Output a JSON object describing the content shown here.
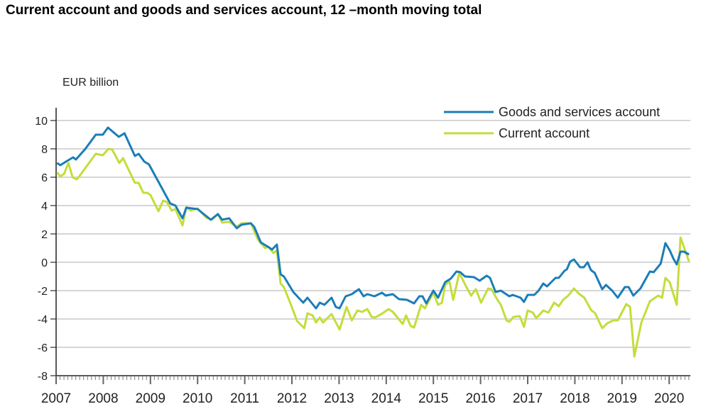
{
  "chart_data": {
    "type": "line",
    "title": "Current account and goods and services account, 12 –month moving total",
    "ylabel": "EUR billion",
    "xlabel": "",
    "ylim": [
      -8,
      11
    ],
    "xlim": [
      2007,
      2020.45
    ],
    "yticks": [
      "10",
      "8",
      "6",
      "4",
      "2",
      "0",
      "-2",
      "-4",
      "-6",
      "-8"
    ],
    "xticks": [
      "2007",
      "2008",
      "2009",
      "2010",
      "2011",
      "2012",
      "2013",
      "2014",
      "2015",
      "2016",
      "2017",
      "2018",
      "2019",
      "2020"
    ],
    "grid": true,
    "legend_position": "top-right",
    "series": [
      {
        "name": "Goods and services account",
        "color": "#1b7db8",
        "points": [
          [
            2007.02,
            7.0
          ],
          [
            2007.09,
            6.85
          ],
          [
            2007.21,
            7.1
          ],
          [
            2007.36,
            7.4
          ],
          [
            2007.42,
            7.25
          ],
          [
            2007.62,
            8.0
          ],
          [
            2007.84,
            9.0
          ],
          [
            2007.99,
            9.0
          ],
          [
            2008.1,
            9.5
          ],
          [
            2008.33,
            8.85
          ],
          [
            2008.45,
            9.1
          ],
          [
            2008.67,
            7.5
          ],
          [
            2008.75,
            7.65
          ],
          [
            2008.87,
            7.1
          ],
          [
            2008.97,
            6.9
          ],
          [
            2009.42,
            4.15
          ],
          [
            2009.53,
            4.0
          ],
          [
            2009.68,
            3.1
          ],
          [
            2009.76,
            3.85
          ],
          [
            2010.0,
            3.75
          ],
          [
            2010.28,
            3.0
          ],
          [
            2010.43,
            3.4
          ],
          [
            2010.52,
            3.0
          ],
          [
            2010.67,
            3.1
          ],
          [
            2010.83,
            2.4
          ],
          [
            2010.93,
            2.65
          ],
          [
            2011.13,
            2.75
          ],
          [
            2011.2,
            2.5
          ],
          [
            2011.34,
            1.4
          ],
          [
            2011.49,
            1.1
          ],
          [
            2011.58,
            0.9
          ],
          [
            2011.68,
            1.25
          ],
          [
            2011.76,
            -0.85
          ],
          [
            2011.83,
            -1.0
          ],
          [
            2012.03,
            -2.1
          ],
          [
            2012.24,
            -2.85
          ],
          [
            2012.33,
            -2.5
          ],
          [
            2012.51,
            -3.25
          ],
          [
            2012.59,
            -2.85
          ],
          [
            2012.69,
            -3.0
          ],
          [
            2012.84,
            -2.5
          ],
          [
            2012.93,
            -3.15
          ],
          [
            2013.01,
            -3.25
          ],
          [
            2013.14,
            -2.4
          ],
          [
            2013.27,
            -2.25
          ],
          [
            2013.42,
            -1.9
          ],
          [
            2013.52,
            -2.4
          ],
          [
            2013.6,
            -2.25
          ],
          [
            2013.75,
            -2.4
          ],
          [
            2013.91,
            -2.15
          ],
          [
            2013.99,
            -2.35
          ],
          [
            2014.14,
            -2.25
          ],
          [
            2014.27,
            -2.6
          ],
          [
            2014.44,
            -2.65
          ],
          [
            2014.59,
            -2.9
          ],
          [
            2014.7,
            -2.4
          ],
          [
            2014.77,
            -2.4
          ],
          [
            2014.85,
            -2.9
          ],
          [
            2015.0,
            -2.0
          ],
          [
            2015.1,
            -2.5
          ],
          [
            2015.25,
            -1.4
          ],
          [
            2015.37,
            -1.15
          ],
          [
            2015.49,
            -0.65
          ],
          [
            2015.57,
            -0.7
          ],
          [
            2015.67,
            -1.0
          ],
          [
            2015.86,
            -1.05
          ],
          [
            2015.98,
            -1.3
          ],
          [
            2016.13,
            -0.95
          ],
          [
            2016.2,
            -1.1
          ],
          [
            2016.32,
            -2.1
          ],
          [
            2016.43,
            -2.0
          ],
          [
            2016.61,
            -2.4
          ],
          [
            2016.68,
            -2.3
          ],
          [
            2016.85,
            -2.5
          ],
          [
            2016.92,
            -2.8
          ],
          [
            2017.0,
            -2.3
          ],
          [
            2017.14,
            -2.3
          ],
          [
            2017.23,
            -2.0
          ],
          [
            2017.33,
            -1.5
          ],
          [
            2017.41,
            -1.7
          ],
          [
            2017.59,
            -1.1
          ],
          [
            2017.66,
            -1.1
          ],
          [
            2017.78,
            -0.6
          ],
          [
            2017.83,
            -0.5
          ],
          [
            2017.9,
            0.05
          ],
          [
            2017.98,
            0.2
          ],
          [
            2018.11,
            -0.35
          ],
          [
            2018.19,
            -0.35
          ],
          [
            2018.27,
            0.0
          ],
          [
            2018.34,
            -0.55
          ],
          [
            2018.42,
            -0.75
          ],
          [
            2018.58,
            -1.9
          ],
          [
            2018.66,
            -1.6
          ],
          [
            2018.79,
            -2.0
          ],
          [
            2018.91,
            -2.5
          ],
          [
            2019.06,
            -1.75
          ],
          [
            2019.14,
            -1.75
          ],
          [
            2019.24,
            -2.35
          ],
          [
            2019.39,
            -1.85
          ],
          [
            2019.59,
            -0.65
          ],
          [
            2019.67,
            -0.7
          ],
          [
            2019.82,
            -0.1
          ],
          [
            2019.92,
            1.35
          ],
          [
            2020.01,
            0.85
          ],
          [
            2020.09,
            0.25
          ],
          [
            2020.16,
            -0.15
          ],
          [
            2020.24,
            0.75
          ],
          [
            2020.31,
            0.75
          ],
          [
            2020.42,
            0.55
          ]
        ]
      },
      {
        "name": "Current account",
        "color": "#c5dc3c",
        "points": [
          [
            2007.02,
            6.35
          ],
          [
            2007.09,
            6.05
          ],
          [
            2007.17,
            6.25
          ],
          [
            2007.26,
            7.0
          ],
          [
            2007.35,
            6.0
          ],
          [
            2007.44,
            5.85
          ],
          [
            2007.51,
            6.15
          ],
          [
            2007.84,
            7.65
          ],
          [
            2007.99,
            7.55
          ],
          [
            2008.11,
            8.0
          ],
          [
            2008.19,
            7.95
          ],
          [
            2008.34,
            7.0
          ],
          [
            2008.42,
            7.35
          ],
          [
            2008.67,
            5.6
          ],
          [
            2008.75,
            5.6
          ],
          [
            2008.85,
            4.9
          ],
          [
            2008.93,
            4.9
          ],
          [
            2009.0,
            4.75
          ],
          [
            2009.17,
            3.6
          ],
          [
            2009.27,
            4.35
          ],
          [
            2009.35,
            4.25
          ],
          [
            2009.45,
            3.65
          ],
          [
            2009.53,
            3.75
          ],
          [
            2009.68,
            2.6
          ],
          [
            2009.76,
            3.9
          ],
          [
            2009.85,
            3.65
          ],
          [
            2010.0,
            3.8
          ],
          [
            2010.18,
            3.15
          ],
          [
            2010.3,
            3.0
          ],
          [
            2010.43,
            3.4
          ],
          [
            2010.52,
            2.8
          ],
          [
            2010.67,
            2.85
          ],
          [
            2010.83,
            2.5
          ],
          [
            2010.93,
            2.75
          ],
          [
            2011.13,
            2.75
          ],
          [
            2011.28,
            1.6
          ],
          [
            2011.43,
            1.0
          ],
          [
            2011.5,
            1.1
          ],
          [
            2011.61,
            0.65
          ],
          [
            2011.68,
            0.85
          ],
          [
            2011.76,
            -1.5
          ],
          [
            2011.83,
            -1.75
          ],
          [
            2011.98,
            -3.0
          ],
          [
            2012.11,
            -4.15
          ],
          [
            2012.26,
            -4.65
          ],
          [
            2012.33,
            -3.6
          ],
          [
            2012.44,
            -3.75
          ],
          [
            2012.51,
            -4.25
          ],
          [
            2012.59,
            -3.9
          ],
          [
            2012.66,
            -4.25
          ],
          [
            2012.84,
            -3.65
          ],
          [
            2013.01,
            -4.75
          ],
          [
            2013.16,
            -3.15
          ],
          [
            2013.27,
            -4.1
          ],
          [
            2013.39,
            -3.4
          ],
          [
            2013.49,
            -3.5
          ],
          [
            2013.6,
            -3.3
          ],
          [
            2013.69,
            -3.85
          ],
          [
            2013.76,
            -3.9
          ],
          [
            2013.9,
            -3.65
          ],
          [
            2014.05,
            -3.3
          ],
          [
            2014.14,
            -3.5
          ],
          [
            2014.35,
            -4.35
          ],
          [
            2014.42,
            -3.75
          ],
          [
            2014.52,
            -4.5
          ],
          [
            2014.59,
            -4.6
          ],
          [
            2014.74,
            -3.0
          ],
          [
            2014.82,
            -3.25
          ],
          [
            2015.0,
            -2.15
          ],
          [
            2015.1,
            -3.0
          ],
          [
            2015.18,
            -2.85
          ],
          [
            2015.25,
            -1.6
          ],
          [
            2015.34,
            -1.35
          ],
          [
            2015.42,
            -2.65
          ],
          [
            2015.55,
            -0.75
          ],
          [
            2015.7,
            -1.75
          ],
          [
            2015.8,
            -2.35
          ],
          [
            2015.9,
            -1.9
          ],
          [
            2016.01,
            -2.85
          ],
          [
            2016.16,
            -1.85
          ],
          [
            2016.23,
            -1.9
          ],
          [
            2016.35,
            -2.6
          ],
          [
            2016.43,
            -3.0
          ],
          [
            2016.55,
            -4.1
          ],
          [
            2016.61,
            -4.2
          ],
          [
            2016.7,
            -3.85
          ],
          [
            2016.83,
            -3.8
          ],
          [
            2016.92,
            -4.55
          ],
          [
            2017.0,
            -3.4
          ],
          [
            2017.11,
            -3.55
          ],
          [
            2017.18,
            -3.95
          ],
          [
            2017.33,
            -3.4
          ],
          [
            2017.44,
            -3.55
          ],
          [
            2017.56,
            -2.85
          ],
          [
            2017.66,
            -3.1
          ],
          [
            2017.75,
            -2.65
          ],
          [
            2017.86,
            -2.35
          ],
          [
            2017.98,
            -1.85
          ],
          [
            2018.08,
            -2.2
          ],
          [
            2018.2,
            -2.5
          ],
          [
            2018.34,
            -3.35
          ],
          [
            2018.43,
            -3.6
          ],
          [
            2018.58,
            -4.65
          ],
          [
            2018.69,
            -4.3
          ],
          [
            2018.81,
            -4.1
          ],
          [
            2018.91,
            -4.1
          ],
          [
            2019.09,
            -2.95
          ],
          [
            2019.17,
            -3.15
          ],
          [
            2019.26,
            -6.65
          ],
          [
            2019.41,
            -4.25
          ],
          [
            2019.59,
            -2.75
          ],
          [
            2019.77,
            -2.35
          ],
          [
            2019.85,
            -2.5
          ],
          [
            2019.92,
            -1.1
          ],
          [
            2020.01,
            -1.4
          ],
          [
            2020.16,
            -3.0
          ],
          [
            2020.24,
            1.75
          ],
          [
            2020.31,
            1.1
          ],
          [
            2020.42,
            0.05
          ]
        ]
      }
    ]
  }
}
